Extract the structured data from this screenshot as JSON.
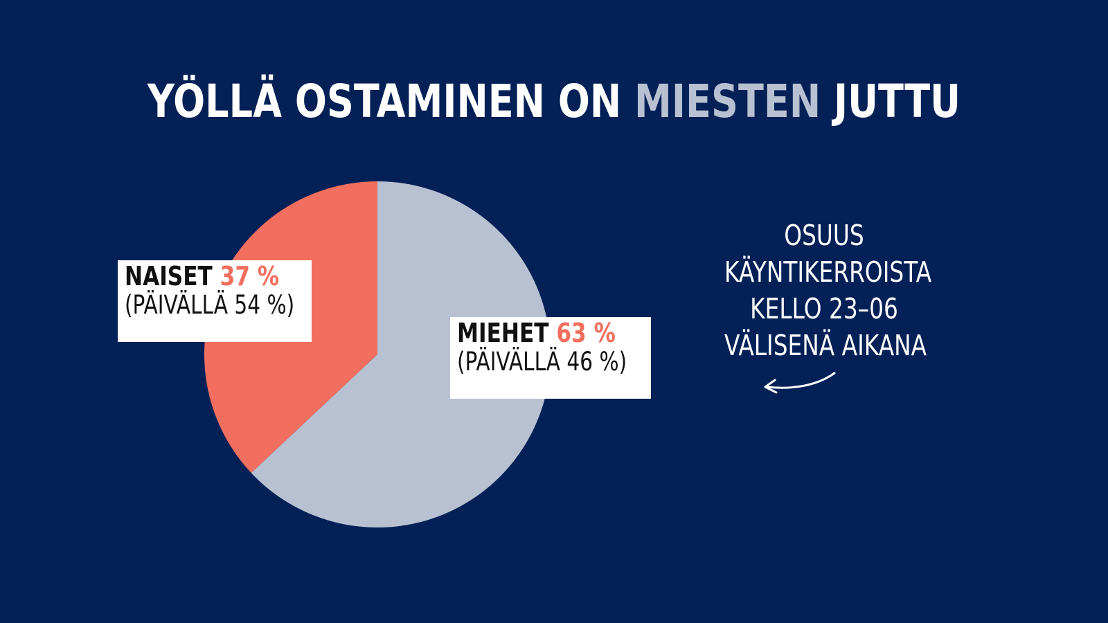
{
  "title": {
    "part1": "YÖLLÄ OSTAMINEN ON ",
    "highlight": "MIESTEN",
    "part2": " JUTTU"
  },
  "colors": {
    "background": "#042157",
    "women": "#f26e5e",
    "men": "#b7c1d2",
    "highlight": "#b7c1d2"
  },
  "labels": {
    "naiset": {
      "name": "NAISET",
      "pct": "37 %",
      "day": "(PÄIVÄLLÄ 54 %)"
    },
    "miehet": {
      "name": "MIEHET",
      "pct": "63 %",
      "day": "(PÄIVÄLLÄ 46 %)"
    }
  },
  "note": {
    "line1": "OSUUS",
    "line2": "KÄYNTIKERROISTA",
    "line3": "KELLO 23–06",
    "line4": "VÄLISENÄ AIKANA",
    "arrow_icon": "curved-arrow-left-icon"
  },
  "chart_data": {
    "type": "pie",
    "title": "YÖLLÄ OSTAMINEN ON MIESTEN JUTTU",
    "categories": [
      "MIEHET",
      "NAISET"
    ],
    "values": [
      63,
      37
    ],
    "colors": [
      "#b7c1d2",
      "#f26e5e"
    ],
    "secondary_values": {
      "MIEHET": 46,
      "NAISET": 54
    },
    "start": "12 o'clock, clockwise"
  }
}
